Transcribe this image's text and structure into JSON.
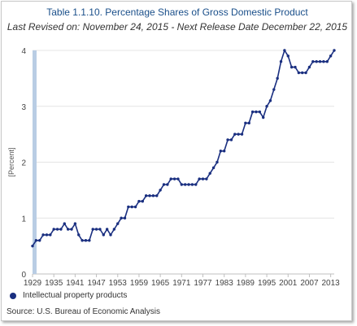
{
  "chart_data": {
    "type": "line",
    "title": "Table 1.1.10. Percentage Shares of Gross Domestic Product",
    "subtitle": "Last Revised on: November 24, 2015 - Next Release Date December 22, 2015",
    "xlabel": "",
    "ylabel": "[Percent]",
    "xlim": [
      1929,
      2014
    ],
    "ylim": [
      0,
      4
    ],
    "yticks": [
      0,
      1,
      2,
      3,
      4
    ],
    "xticks": [
      1929,
      1935,
      1941,
      1947,
      1953,
      1959,
      1965,
      1971,
      1977,
      1983,
      1989,
      1995,
      2001,
      2007,
      2013
    ],
    "grid": true,
    "legend_position": "bottom-left",
    "series": [
      {
        "name": "Intellectual property products",
        "color": "#1a2f80",
        "x": [
          1929,
          1930,
          1931,
          1932,
          1933,
          1934,
          1935,
          1936,
          1937,
          1938,
          1939,
          1940,
          1941,
          1942,
          1943,
          1944,
          1945,
          1946,
          1947,
          1948,
          1949,
          1950,
          1951,
          1952,
          1953,
          1954,
          1955,
          1956,
          1957,
          1958,
          1959,
          1960,
          1961,
          1962,
          1963,
          1964,
          1965,
          1966,
          1967,
          1968,
          1969,
          1970,
          1971,
          1972,
          1973,
          1974,
          1975,
          1976,
          1977,
          1978,
          1979,
          1980,
          1981,
          1982,
          1983,
          1984,
          1985,
          1986,
          1987,
          1988,
          1989,
          1990,
          1991,
          1992,
          1993,
          1994,
          1995,
          1996,
          1997,
          1998,
          1999,
          2000,
          2001,
          2002,
          2003,
          2004,
          2005,
          2006,
          2007,
          2008,
          2009,
          2010,
          2011,
          2012,
          2013,
          2014
        ],
        "values": [
          0.5,
          0.6,
          0.6,
          0.7,
          0.7,
          0.7,
          0.8,
          0.8,
          0.8,
          0.9,
          0.8,
          0.8,
          0.9,
          0.7,
          0.6,
          0.6,
          0.6,
          0.8,
          0.8,
          0.8,
          0.7,
          0.8,
          0.7,
          0.8,
          0.9,
          1.0,
          1.0,
          1.2,
          1.2,
          1.2,
          1.3,
          1.3,
          1.4,
          1.4,
          1.4,
          1.4,
          1.5,
          1.6,
          1.6,
          1.7,
          1.7,
          1.7,
          1.6,
          1.6,
          1.6,
          1.6,
          1.6,
          1.7,
          1.7,
          1.7,
          1.8,
          1.9,
          2.0,
          2.2,
          2.2,
          2.4,
          2.4,
          2.5,
          2.5,
          2.5,
          2.7,
          2.7,
          2.9,
          2.9,
          2.9,
          2.8,
          3.0,
          3.1,
          3.3,
          3.5,
          3.8,
          4.0,
          3.9,
          3.7,
          3.7,
          3.6,
          3.6,
          3.6,
          3.7,
          3.8,
          3.8,
          3.8,
          3.8,
          3.8,
          3.9,
          4.0
        ]
      }
    ]
  },
  "source": "Source: U.S. Bureau of Economic Analysis"
}
